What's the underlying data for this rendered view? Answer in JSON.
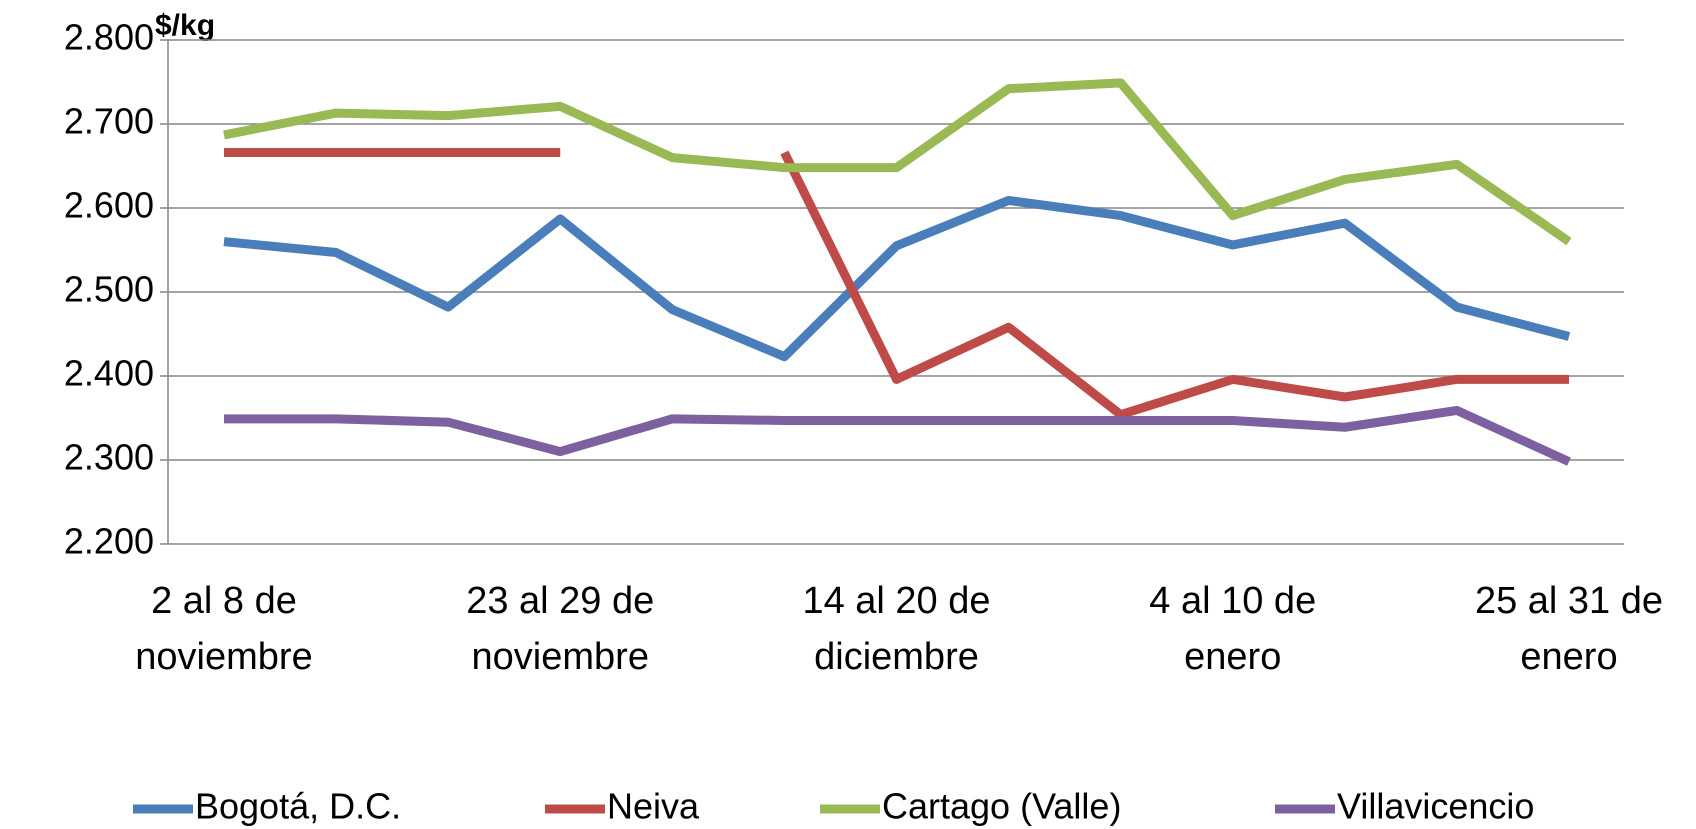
{
  "chart_data": {
    "type": "line",
    "y_label": "$/kg",
    "categories": [
      "2 al 8 de noviembre",
      null,
      null,
      "23 al 29 de noviembre",
      null,
      null,
      "14 al 20 de diciembre",
      null,
      null,
      "4 al 10 de enero",
      null,
      null,
      "25 al 31 de enero"
    ],
    "ylim": [
      2200,
      2800
    ],
    "yticks": [
      {
        "value": 2200,
        "label": "2.200"
      },
      {
        "value": 2300,
        "label": "2.300"
      },
      {
        "value": 2400,
        "label": "2.400"
      },
      {
        "value": 2500,
        "label": "2.500"
      },
      {
        "value": 2600,
        "label": "2.600"
      },
      {
        "value": 2700,
        "label": "2.700"
      },
      {
        "value": 2800,
        "label": "2.800"
      }
    ],
    "grid": true,
    "legend": "bottom",
    "series": [
      {
        "name": "Bogotá, D.C.",
        "color": "#4a7ebb",
        "values": [
          2560,
          2547,
          2482,
          2587,
          2479,
          2423,
          2555,
          2609,
          2591,
          2556,
          2582,
          2482,
          2447
        ]
      },
      {
        "name": "Neiva",
        "color": "#be4b48",
        "values": [
          2666,
          2666,
          2666,
          2666,
          null,
          2666,
          2396,
          2458,
          2354,
          2396,
          2375,
          2396,
          2396
        ]
      },
      {
        "name": "Cartago (Valle)",
        "color": "#98b954",
        "values": [
          2687,
          2713,
          2710,
          2721,
          2660,
          2648,
          2648,
          2742,
          2749,
          2591,
          2634,
          2652,
          2560
        ]
      },
      {
        "name": "Villavicencio",
        "color": "#7d60a0",
        "values": [
          2349,
          2349,
          2345,
          2310,
          2349,
          2347,
          2347,
          2347,
          2347,
          2347,
          2339,
          2359,
          2298
        ]
      }
    ]
  }
}
